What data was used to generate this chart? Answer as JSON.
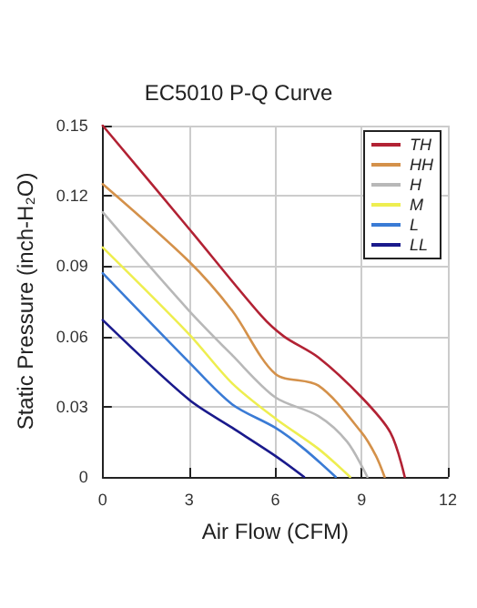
{
  "chart_data": {
    "type": "line",
    "title": "EC5010 P-Q Curve",
    "xlabel": "Air Flow (CFM)",
    "ylabel": "Static Pressure (inch-H₂O)",
    "xlim": [
      0,
      12
    ],
    "xticks": [
      0,
      3,
      6,
      9,
      12
    ],
    "ylim": [
      0,
      0.15
    ],
    "yticks": [
      0,
      0.03,
      0.06,
      0.09,
      0.12,
      0.15
    ],
    "grid": true,
    "legend": "top right",
    "marker": "none",
    "line_style": "solid",
    "series": [
      {
        "name": "TH",
        "color": "#b22234",
        "x": [
          0,
          3,
          5.5,
          6.3,
          7.5,
          9,
          10,
          10.5
        ],
        "values": [
          0.15,
          0.106,
          0.069,
          0.06,
          0.051,
          0.034,
          0.019,
          0
        ]
      },
      {
        "name": "HH",
        "color": "#d4914a",
        "x": [
          0,
          3,
          4.5,
          6,
          7.5,
          9,
          9.5,
          9.8
        ],
        "values": [
          0.125,
          0.092,
          0.071,
          0.044,
          0.039,
          0.019,
          0.009,
          0
        ]
      },
      {
        "name": "H",
        "color": "#b8b8b8",
        "x": [
          0,
          3,
          4.5,
          6,
          7.5,
          8.5,
          9.2
        ],
        "values": [
          0.113,
          0.071,
          0.052,
          0.034,
          0.026,
          0.015,
          0
        ]
      },
      {
        "name": "M",
        "color": "#eeee50",
        "x": [
          0,
          3,
          4.5,
          6,
          7.5,
          8.6
        ],
        "values": [
          0.098,
          0.061,
          0.04,
          0.025,
          0.012,
          0
        ]
      },
      {
        "name": "L",
        "color": "#3a7bd5",
        "x": [
          0,
          3,
          4.5,
          6,
          7,
          8.1
        ],
        "values": [
          0.087,
          0.049,
          0.031,
          0.021,
          0.012,
          0
        ]
      },
      {
        "name": "LL",
        "color": "#1a1a8c",
        "x": [
          0,
          3,
          4.5,
          6,
          7
        ],
        "values": [
          0.067,
          0.033,
          0.021,
          0.009,
          0
        ]
      }
    ]
  }
}
